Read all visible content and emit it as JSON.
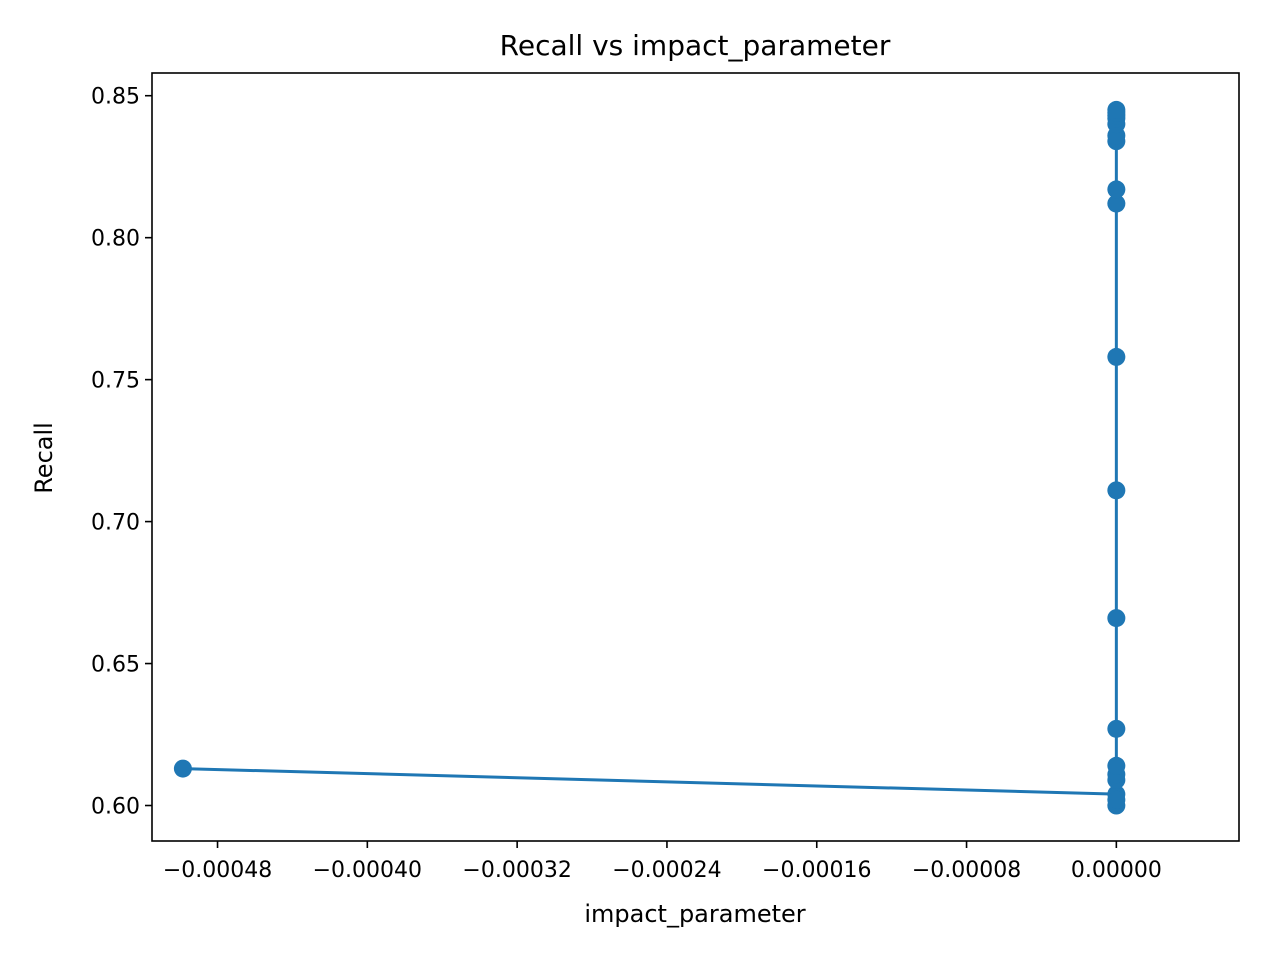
{
  "chart_data": {
    "type": "line",
    "title": "Recall vs impact_parameter",
    "xlabel": "impact_parameter",
    "ylabel": "Recall",
    "xlim": [
      -0.000515,
      6.55e-05
    ],
    "ylim": [
      0.5875,
      0.858
    ],
    "xticks": [
      {
        "value": -0.00048,
        "label": "−0.00048"
      },
      {
        "value": -0.0004,
        "label": "−0.00040"
      },
      {
        "value": -0.00032,
        "label": "−0.00032"
      },
      {
        "value": -0.00024,
        "label": "−0.00024"
      },
      {
        "value": -0.00016,
        "label": "−0.00016"
      },
      {
        "value": -8e-05,
        "label": "−0.00008"
      },
      {
        "value": 0.0,
        "label": "0.00000"
      }
    ],
    "yticks": [
      {
        "value": 0.6,
        "label": "0.60"
      },
      {
        "value": 0.65,
        "label": "0.65"
      },
      {
        "value": 0.7,
        "label": "0.70"
      },
      {
        "value": 0.75,
        "label": "0.75"
      },
      {
        "value": 0.8,
        "label": "0.80"
      },
      {
        "value": 0.85,
        "label": "0.85"
      }
    ],
    "grid": false,
    "color": "#1f77b4",
    "series": [
      {
        "x": [
          -0.0004985,
          0.0,
          0.0,
          0.0,
          0.0,
          0.0,
          0.0,
          0.0,
          0.0,
          0.0,
          0.0,
          0.0,
          0.0,
          0.0,
          0.0,
          0.0,
          0.0,
          0.0,
          0.0,
          0.0
        ],
        "y": [
          0.613,
          0.604,
          0.6,
          0.602,
          0.609,
          0.611,
          0.614,
          0.627,
          0.666,
          0.711,
          0.758,
          0.812,
          0.817,
          0.834,
          0.836,
          0.84,
          0.842,
          0.843,
          0.844,
          0.845
        ]
      }
    ]
  }
}
